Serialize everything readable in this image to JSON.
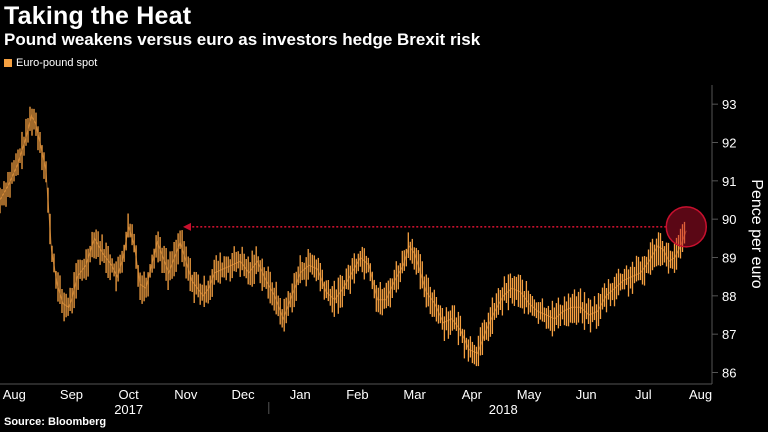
{
  "title": "Taking the Heat",
  "subtitle": "Pound weakens versus euro as investors hedge Brexit risk",
  "legend": {
    "label": "Euro-pound spot"
  },
  "source": "Source: Bloomberg",
  "colors": {
    "series": "#f5a041",
    "annotation": "#c8102e",
    "background": "#000000",
    "text": "#ffffff",
    "grid": "#555555"
  },
  "chart_data": {
    "type": "line",
    "title": "Taking the Heat",
    "subtitle": "Pound weakens versus euro as investors hedge Brexit risk",
    "ylabel": "Pence per euro",
    "xlabel": "",
    "ylim": [
      85.7,
      93.5
    ],
    "xlim": [
      0,
      12.45
    ],
    "yticks": [
      86,
      87,
      88,
      89,
      90,
      91,
      92,
      93
    ],
    "xticks": [
      {
        "label": "Aug",
        "pos": 0.25
      },
      {
        "label": "Sep",
        "pos": 1.25
      },
      {
        "label": "Oct",
        "pos": 2.25
      },
      {
        "label": "Nov",
        "pos": 3.25
      },
      {
        "label": "Dec",
        "pos": 4.25
      },
      {
        "label": "Jan",
        "pos": 5.25
      },
      {
        "label": "Feb",
        "pos": 6.25
      },
      {
        "label": "Mar",
        "pos": 7.25
      },
      {
        "label": "Apr",
        "pos": 8.25
      },
      {
        "label": "May",
        "pos": 9.25
      },
      {
        "label": "Jun",
        "pos": 10.25
      },
      {
        "label": "Jul",
        "pos": 11.25
      },
      {
        "label": "Aug",
        "pos": 12.25
      }
    ],
    "year_labels": [
      {
        "label": "2017",
        "pos": 2.25
      },
      {
        "label": "2018",
        "pos": 8.8
      }
    ],
    "year_divider": 4.7,
    "grid": false,
    "legend": "top-left",
    "series": [
      {
        "name": "Euro-pound spot",
        "x": [
          0.0,
          0.15,
          0.3,
          0.45,
          0.55,
          0.62,
          0.7,
          0.8,
          0.9,
          1.0,
          1.1,
          1.2,
          1.25,
          1.35,
          1.5,
          1.65,
          1.8,
          1.95,
          2.05,
          2.15,
          2.25,
          2.35,
          2.45,
          2.55,
          2.65,
          2.75,
          2.85,
          2.95,
          3.05,
          3.15,
          3.25,
          3.35,
          3.45,
          3.55,
          3.65,
          3.75,
          3.9,
          4.05,
          4.2,
          4.35,
          4.5,
          4.65,
          4.8,
          4.95,
          5.1,
          5.25,
          5.4,
          5.55,
          5.7,
          5.85,
          6.0,
          6.15,
          6.3,
          6.45,
          6.6,
          6.75,
          6.9,
          7.05,
          7.15,
          7.25,
          7.35,
          7.45,
          7.6,
          7.75,
          7.9,
          8.05,
          8.2,
          8.35,
          8.5,
          8.65,
          8.8,
          8.95,
          9.1,
          9.25,
          9.4,
          9.55,
          9.7,
          9.85,
          10.0,
          10.15,
          10.3,
          10.45,
          10.6,
          10.75,
          10.9,
          11.05,
          11.2,
          11.35,
          11.5,
          11.6,
          11.7,
          11.8,
          11.9,
          12.0
        ],
        "values": [
          90.5,
          90.9,
          91.4,
          92.1,
          92.7,
          92.5,
          92.0,
          91.3,
          89.2,
          88.3,
          87.8,
          87.7,
          87.9,
          88.5,
          88.8,
          89.5,
          89.1,
          88.8,
          88.5,
          89.0,
          89.8,
          89.3,
          88.3,
          88.2,
          88.8,
          89.4,
          89.0,
          88.6,
          89.0,
          89.4,
          88.9,
          88.4,
          88.2,
          88.0,
          88.2,
          88.6,
          88.7,
          88.8,
          88.9,
          88.6,
          88.9,
          88.4,
          88.0,
          87.4,
          88.0,
          88.6,
          88.8,
          88.7,
          88.1,
          87.9,
          88.2,
          88.6,
          89.0,
          88.8,
          87.9,
          87.9,
          88.4,
          88.8,
          89.3,
          89.1,
          88.6,
          88.1,
          87.8,
          87.3,
          87.4,
          87.1,
          86.6,
          86.5,
          87.1,
          87.6,
          88.0,
          88.2,
          88.1,
          87.8,
          87.6,
          87.5,
          87.4,
          87.6,
          87.7,
          87.7,
          87.5,
          87.6,
          88.0,
          88.2,
          88.4,
          88.5,
          88.6,
          88.9,
          89.3,
          89.2,
          88.9,
          89.0,
          89.3,
          89.7
        ]
      }
    ],
    "annotations": {
      "reference_level": 89.8,
      "arrow_from": 12.0,
      "arrow_to": 3.2,
      "circle_at": {
        "x": 12.0,
        "y": 89.8
      }
    }
  }
}
